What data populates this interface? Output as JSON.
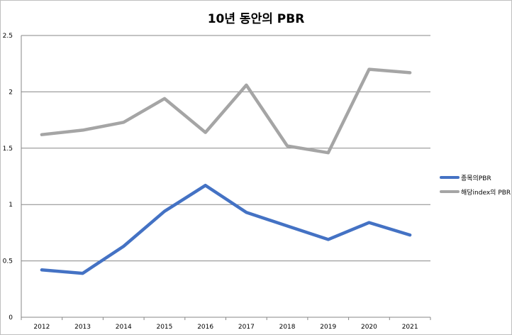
{
  "chart_data": {
    "type": "line",
    "title": "10년 동안의 PBR",
    "xlabel": "",
    "ylabel": "",
    "categories": [
      "2012",
      "2013",
      "2014",
      "2015",
      "2016",
      "2017",
      "2018",
      "2019",
      "2020",
      "2021"
    ],
    "ylim": [
      0,
      2.5
    ],
    "yticks": [
      "0",
      "0.5",
      "1",
      "1.5",
      "2",
      "2.5"
    ],
    "grid": true,
    "legend_position": "right",
    "series": [
      {
        "name": "종목의PBR",
        "color": "#4472c4",
        "values": [
          0.42,
          0.39,
          0.63,
          0.94,
          1.17,
          0.93,
          0.81,
          0.69,
          0.84,
          0.73
        ]
      },
      {
        "name": "해당index의 PBR",
        "color": "#a5a5a5",
        "values": [
          1.62,
          1.66,
          1.73,
          1.94,
          1.64,
          2.06,
          1.52,
          1.46,
          2.2,
          2.17
        ]
      }
    ]
  }
}
